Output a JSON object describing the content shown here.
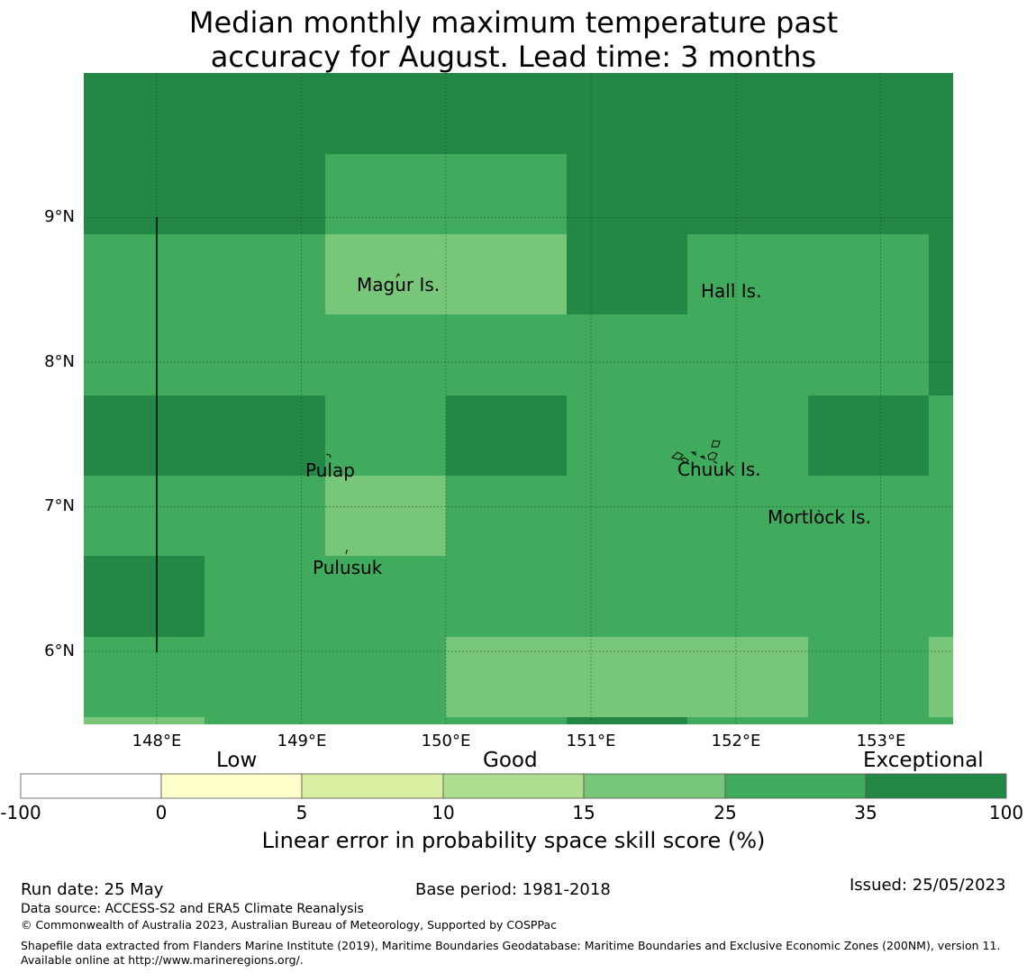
{
  "title_lines": [
    "Median monthly maximum temperature past",
    "accuracy for August. Lead time: 3 months"
  ],
  "map": {
    "lat_labels": [
      "9°N",
      "8°N",
      "7°N",
      "6°N"
    ],
    "lon_labels": [
      "148°E",
      "149°E",
      "150°E",
      "151°E",
      "152°E",
      "153°E"
    ],
    "places": [
      "Magur Is.",
      "Hall Is.",
      "Pulap",
      "Chuuk Is.",
      "Mortlock Is.",
      "Pulusuk"
    ],
    "palette": {
      "exceptional": "#238845",
      "good_high": "#41ab5d",
      "good_mid": "#78c679",
      "good_low": "#addd8e",
      "low_high": "#d9f0a3",
      "low": "#ffffcc",
      "none": "#ffffff"
    }
  },
  "colorbar": {
    "categories": [
      "Low",
      "Good",
      "Exceptional"
    ],
    "ticks": [
      "-100",
      "0",
      "5",
      "10",
      "15",
      "25",
      "35",
      "100"
    ],
    "colors": [
      "#ffffff",
      "#ffffcc",
      "#d9f0a3",
      "#addd8e",
      "#78c679",
      "#41ab5d",
      "#238845"
    ],
    "label": "Linear error in probability space skill score (%)"
  },
  "footer": {
    "run_date": "Run date: 25 May",
    "base_period": "Base period: 1981-2018",
    "issued": "Issued: 25/05/2023",
    "data_source": "Data source: ACCESS-S2 and ERA5 Climate Reanalysis",
    "copyright": "© Commonwealth of Australia 2023, Australian Bureau of Meteorology, Supported by COSPPac",
    "shapefile": "Shapefile data extracted from Flanders Marine Institute (2019), Maritime Boundaries Geodatabase: Maritime Boundaries and Exclusive Economic Zones (200NM), version 11. Available online at http://www.marineregions.org/."
  }
}
